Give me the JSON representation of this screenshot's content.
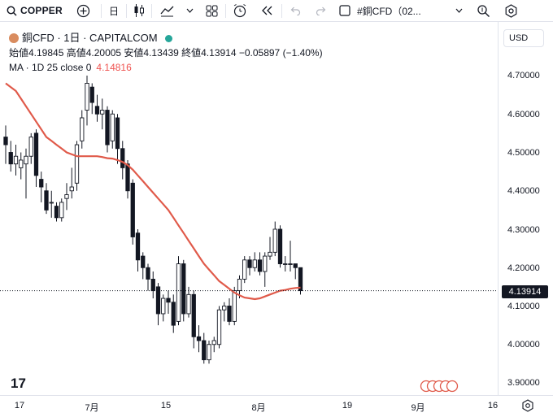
{
  "toolbar": {
    "symbol": "COPPER",
    "interval": "日",
    "symbol_field": "#銅CFD（02..."
  },
  "legend": {
    "title": "銅CFD · 1日 · CAPITALCOM",
    "ohlc": "始値4.19845 高値4.20005 安値4.13439 終値4.13914 −0.05897 (−1.40%)",
    "ohlc_open_label": "始値",
    "ohlc_open": "4.19845",
    "ohlc_high_label": "高値",
    "ohlc_high": "4.20005",
    "ohlc_low_label": "安値",
    "ohlc_low": "4.13439",
    "ohlc_close_label": "終値",
    "ohlc_close": "4.13914",
    "ohlc_change": "−0.05897 (−1.40%)",
    "ma_label": "MA · 1D 25 close 0",
    "ma_value": "4.14816",
    "status_color": "#26a69a",
    "ma_color": "#e05a4a"
  },
  "currency": "USD",
  "price_labels": [
    "4.70000",
    "4.60000",
    "4.50000",
    "4.40000",
    "4.30000",
    "4.20000",
    "4.10000",
    "4.00000",
    "3.90000"
  ],
  "current_price": "4.13914",
  "time_labels": [
    "17",
    "7月",
    "15",
    "8月",
    "19",
    "9月",
    "16"
  ],
  "chart_data": {
    "type": "candlestick",
    "ylim": [
      3.87,
      4.76
    ],
    "candles": [
      [
        4.54,
        4.52,
        4.57,
        4.47
      ],
      [
        4.5,
        4.47,
        4.53,
        4.45
      ],
      [
        4.47,
        4.49,
        4.52,
        4.44
      ],
      [
        4.46,
        4.48,
        4.5,
        4.43
      ],
      [
        4.47,
        4.49,
        4.51,
        4.38
      ],
      [
        4.49,
        4.54,
        4.55,
        4.47
      ],
      [
        4.55,
        4.44,
        4.56,
        4.41
      ],
      [
        4.43,
        4.41,
        4.45,
        4.37
      ],
      [
        4.4,
        4.35,
        4.42,
        4.34
      ],
      [
        4.37,
        4.37,
        4.4,
        4.33
      ],
      [
        4.36,
        4.33,
        4.37,
        4.32
      ],
      [
        4.33,
        4.37,
        4.38,
        4.32
      ],
      [
        4.38,
        4.39,
        4.42,
        4.35
      ],
      [
        4.4,
        4.41,
        4.46,
        4.38
      ],
      [
        4.42,
        4.52,
        4.53,
        4.4
      ],
      [
        4.53,
        4.59,
        4.61,
        4.51
      ],
      [
        4.61,
        4.68,
        4.7,
        4.57
      ],
      [
        4.67,
        4.63,
        4.68,
        4.6
      ],
      [
        4.62,
        4.6,
        4.65,
        4.58
      ],
      [
        4.6,
        4.61,
        4.64,
        4.56
      ],
      [
        4.61,
        4.52,
        4.62,
        4.5
      ],
      [
        4.53,
        4.6,
        4.61,
        4.51
      ],
      [
        4.59,
        4.51,
        4.6,
        4.47
      ],
      [
        4.51,
        4.46,
        4.53,
        4.43
      ],
      [
        4.47,
        4.4,
        4.48,
        4.38
      ],
      [
        4.42,
        4.28,
        4.43,
        4.26
      ],
      [
        4.29,
        4.22,
        4.3,
        4.19
      ],
      [
        4.23,
        4.2,
        4.24,
        4.17
      ],
      [
        4.2,
        4.17,
        4.21,
        4.14
      ],
      [
        4.17,
        4.14,
        4.19,
        4.12
      ],
      [
        4.15,
        4.08,
        4.16,
        4.05
      ],
      [
        4.08,
        4.12,
        4.13,
        4.06
      ],
      [
        4.12,
        4.11,
        4.14,
        4.08
      ],
      [
        4.11,
        4.05,
        4.13,
        4.03
      ],
      [
        4.06,
        4.21,
        4.23,
        4.05
      ],
      [
        4.21,
        4.08,
        4.22,
        4.06
      ],
      [
        4.08,
        4.13,
        4.15,
        4.07
      ],
      [
        4.13,
        4.02,
        4.14,
        3.99
      ],
      [
        4.02,
        4.01,
        4.05,
        3.98
      ],
      [
        4.01,
        3.96,
        4.03,
        3.95
      ],
      [
        3.96,
        4.0,
        4.01,
        3.95
      ],
      [
        4.0,
        4.01,
        4.02,
        3.98
      ],
      [
        4.0,
        4.09,
        4.1,
        3.99
      ],
      [
        4.09,
        4.1,
        4.11,
        4.06
      ],
      [
        4.1,
        4.06,
        4.12,
        4.05
      ],
      [
        4.06,
        4.14,
        4.15,
        4.05
      ],
      [
        4.14,
        4.17,
        4.18,
        4.12
      ],
      [
        4.17,
        4.22,
        4.23,
        4.16
      ],
      [
        4.22,
        4.2,
        4.23,
        4.18
      ],
      [
        4.2,
        4.22,
        4.24,
        4.19
      ],
      [
        4.22,
        4.19,
        4.24,
        4.18
      ],
      [
        4.19,
        4.23,
        4.24,
        4.15
      ],
      [
        4.23,
        4.24,
        4.28,
        4.22
      ],
      [
        4.24,
        4.3,
        4.32,
        4.23
      ],
      [
        4.3,
        4.21,
        4.31,
        4.2
      ],
      [
        4.21,
        4.21,
        4.23,
        4.19
      ],
      [
        4.21,
        4.21,
        4.27,
        4.19
      ],
      [
        4.21,
        4.2,
        4.21,
        4.17
      ],
      [
        4.2,
        4.14,
        4.2,
        4.13
      ]
    ],
    "ma": [
      4.68,
      4.67,
      4.66,
      4.64,
      4.62,
      4.6,
      4.58,
      4.56,
      4.54,
      4.53,
      4.52,
      4.51,
      4.5,
      4.495,
      4.49,
      4.49,
      4.49,
      4.49,
      4.49,
      4.488,
      4.485,
      4.484,
      4.48,
      4.475,
      4.467,
      4.455,
      4.44,
      4.425,
      4.41,
      4.395,
      4.38,
      4.365,
      4.35,
      4.33,
      4.31,
      4.29,
      4.27,
      4.25,
      4.23,
      4.21,
      4.195,
      4.18,
      4.165,
      4.155,
      4.145,
      4.135,
      4.128,
      4.122,
      4.12,
      4.118,
      4.12,
      4.125,
      4.13,
      4.135,
      4.14,
      4.142,
      4.145,
      4.147,
      4.148
    ],
    "colors": {
      "up": "#ffffff",
      "down": "#131722",
      "wick": "#131722",
      "ma": "#e05a4a"
    }
  }
}
